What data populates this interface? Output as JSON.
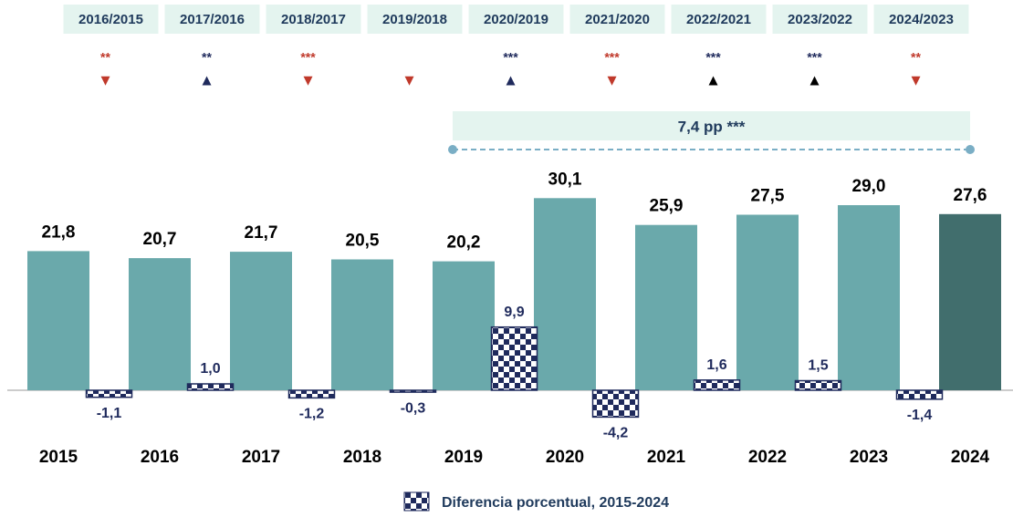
{
  "chart_data": {
    "type": "bar",
    "categories": [
      "2015",
      "2016",
      "2017",
      "2018",
      "2019",
      "2020",
      "2021",
      "2022",
      "2023",
      "2024"
    ],
    "values": [
      21.8,
      20.7,
      21.7,
      20.5,
      20.2,
      30.1,
      25.9,
      27.5,
      29.0,
      27.6
    ],
    "value_labels": [
      "21,8",
      "20,7",
      "21,7",
      "20,5",
      "20,2",
      "30,1",
      "25,9",
      "27,5",
      "29,0",
      "27,6"
    ],
    "colors": [
      "#6aa9ab",
      "#6aa9ab",
      "#6aa9ab",
      "#6aa9ab",
      "#6aa9ab",
      "#6aa9ab",
      "#6aa9ab",
      "#6aa9ab",
      "#6aa9ab",
      "#416e6d"
    ],
    "differences": {
      "name": "Diferencia porcentual, 2015-2024",
      "color": "#1f2a5c",
      "values": [
        -1.1,
        1.0,
        -1.2,
        -0.3,
        9.9,
        -4.2,
        1.6,
        1.5,
        -1.4
      ],
      "value_labels": [
        "-1,1",
        "1,0",
        "-1,2",
        "-0,3",
        "9,9",
        "-4,2",
        "1,6",
        "1,5",
        "-1,4"
      ]
    },
    "comparisons": [
      {
        "label": "2016/2015",
        "stars": "**",
        "stars_color": "#c0392b",
        "arrow": "▼",
        "arrow_color": "#c0392b"
      },
      {
        "label": "2017/2016",
        "stars": "**",
        "stars_color": "#1f2a5c",
        "arrow": "▲",
        "arrow_color": "#1f2a5c"
      },
      {
        "label": "2018/2017",
        "stars": "***",
        "stars_color": "#c0392b",
        "arrow": "▼",
        "arrow_color": "#c0392b"
      },
      {
        "label": "2019/2018",
        "stars": null,
        "stars_color": "#c0392b",
        "arrow": "▼",
        "arrow_color": "#c0392b"
      },
      {
        "label": "2020/2019",
        "stars": "***",
        "stars_color": "#1f2a5c",
        "arrow": "▲",
        "arrow_color": "#1f2a5c"
      },
      {
        "label": "2021/2020",
        "stars": "***",
        "stars_color": "#c0392b",
        "arrow": "▼",
        "arrow_color": "#c0392b"
      },
      {
        "label": "2022/2021",
        "stars": "***",
        "stars_color": "#1f2a5c",
        "arrow": "▲",
        "arrow_color": "#000000"
      },
      {
        "label": "2023/2022",
        "stars": "***",
        "stars_color": "#1f2a5c",
        "arrow": "▲",
        "arrow_color": "#000000"
      },
      {
        "label": "2024/2023",
        "stars": "**",
        "stars_color": "#c0392b",
        "arrow": "▼",
        "arrow_color": "#c0392b"
      }
    ],
    "annotation": {
      "text": "7,4 pp ***",
      "from": "2019",
      "to": "2024"
    }
  }
}
